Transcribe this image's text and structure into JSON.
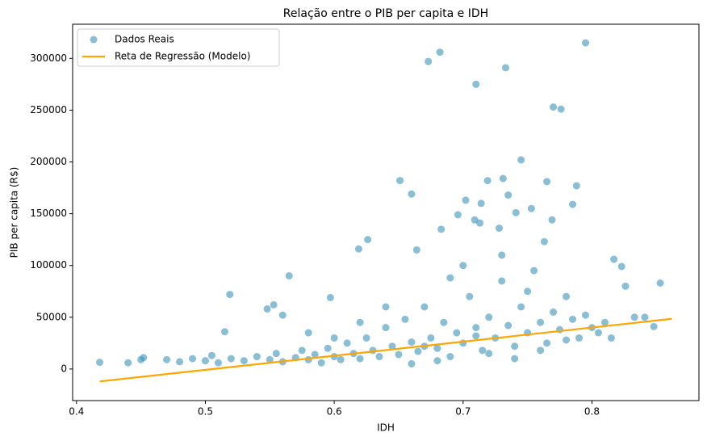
{
  "chart_data": {
    "type": "scatter",
    "title": "Relação entre o PIB per capita e IDH",
    "x_label": "IDH",
    "y_label": "PIB per capita (R$)",
    "xlim": [
      0.397,
      0.883
    ],
    "xticks": [
      0.4,
      0.5,
      0.6,
      0.7,
      0.8
    ],
    "ylim": [
      -30500,
      333000
    ],
    "yticks": [
      0,
      50000,
      100000,
      150000,
      200000,
      250000,
      300000
    ],
    "legend": "upper-left",
    "series": [
      {
        "name": "Dados Reais",
        "type": "scatter",
        "color": "#3a92b8",
        "x": [
          0.795,
          0.682,
          0.673,
          0.733,
          0.71,
          0.77,
          0.776,
          0.745,
          0.651,
          0.719,
          0.731,
          0.765,
          0.788,
          0.66,
          0.735,
          0.702,
          0.714,
          0.753,
          0.785,
          0.696,
          0.741,
          0.709,
          0.769,
          0.713,
          0.683,
          0.728,
          0.626,
          0.619,
          0.664,
          0.763,
          0.519,
          0.565,
          0.553,
          0.548,
          0.597,
          0.515,
          0.56,
          0.44,
          0.418,
          0.45,
          0.452,
          0.853,
          0.817,
          0.823,
          0.826,
          0.848,
          0.841,
          0.833,
          0.47,
          0.48,
          0.49,
          0.5,
          0.505,
          0.51,
          0.52,
          0.53,
          0.54,
          0.55,
          0.555,
          0.56,
          0.57,
          0.575,
          0.58,
          0.585,
          0.59,
          0.595,
          0.6,
          0.605,
          0.61,
          0.615,
          0.62,
          0.625,
          0.63,
          0.635,
          0.64,
          0.645,
          0.65,
          0.655,
          0.66,
          0.665,
          0.67,
          0.675,
          0.68,
          0.685,
          0.69,
          0.695,
          0.7,
          0.705,
          0.71,
          0.715,
          0.72,
          0.725,
          0.73,
          0.735,
          0.74,
          0.745,
          0.75,
          0.755,
          0.76,
          0.765,
          0.77,
          0.775,
          0.78,
          0.785,
          0.79,
          0.795,
          0.8,
          0.805,
          0.81,
          0.815,
          0.72,
          0.74,
          0.68,
          0.66,
          0.7,
          0.73,
          0.69,
          0.75,
          0.62,
          0.6,
          0.58,
          0.64,
          0.78,
          0.76,
          0.71,
          0.67
        ],
        "values": [
          315000,
          306000,
          297000,
          291000,
          275000,
          253000,
          251000,
          202000,
          182000,
          182000,
          184000,
          181000,
          177000,
          169000,
          168000,
          163000,
          160000,
          155000,
          159000,
          149000,
          151000,
          144000,
          144000,
          141000,
          135000,
          136000,
          125000,
          116000,
          115000,
          123000,
          72000,
          90000,
          62000,
          58000,
          69000,
          36000,
          52000,
          6000,
          6500,
          9000,
          11000,
          83000,
          106000,
          99000,
          80000,
          41000,
          50000,
          50000,
          9000,
          7000,
          10000,
          8000,
          13000,
          6000,
          10000,
          8000,
          12000,
          9000,
          15000,
          7000,
          11000,
          18000,
          9000,
          14000,
          6000,
          20000,
          12000,
          9000,
          25000,
          15000,
          10000,
          30000,
          18000,
          12000,
          40000,
          22000,
          14000,
          48000,
          26000,
          17000,
          60000,
          30000,
          20000,
          45000,
          12000,
          35000,
          25000,
          70000,
          40000,
          18000,
          50000,
          30000,
          85000,
          42000,
          22000,
          60000,
          35000,
          95000,
          45000,
          25000,
          55000,
          38000,
          70000,
          48000,
          30000,
          52000,
          40000,
          35000,
          45000,
          30000,
          15000,
          10000,
          8000,
          5000,
          100000,
          110000,
          88000,
          75000,
          45000,
          30000,
          35000,
          60000,
          28000,
          18000,
          32000,
          22000
        ]
      },
      {
        "name": "Reta de Regressão (Modelo)",
        "type": "line",
        "color": "#ffa500",
        "x": [
          0.418,
          0.862
        ],
        "values": [
          -12000,
          48500
        ]
      }
    ]
  }
}
